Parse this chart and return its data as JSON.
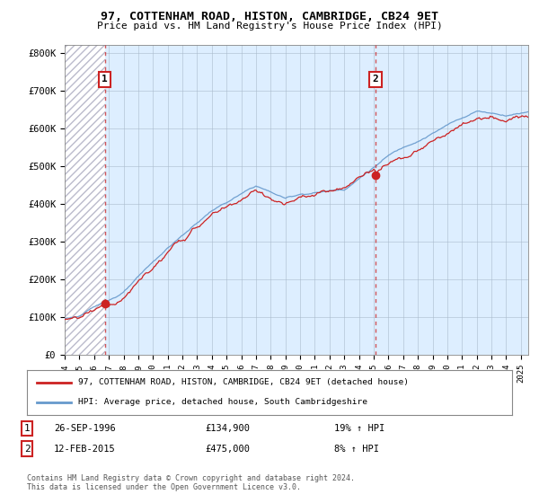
{
  "title": "97, COTTENHAM ROAD, HISTON, CAMBRIDGE, CB24 9ET",
  "subtitle": "Price paid vs. HM Land Registry's House Price Index (HPI)",
  "ylim": [
    0,
    820000
  ],
  "yticks": [
    0,
    100000,
    200000,
    300000,
    400000,
    500000,
    600000,
    700000,
    800000
  ],
  "ytick_labels": [
    "£0",
    "£100K",
    "£200K",
    "£300K",
    "£400K",
    "£500K",
    "£600K",
    "£700K",
    "£800K"
  ],
  "xmin": 1994,
  "xmax": 2025.5,
  "sale1_date": 1996.73,
  "sale1_price": 134900,
  "sale2_date": 2015.12,
  "sale2_price": 475000,
  "legend_line1": "97, COTTENHAM ROAD, HISTON, CAMBRIDGE, CB24 9ET (detached house)",
  "legend_line2": "HPI: Average price, detached house, South Cambridgeshire",
  "footer": "Contains HM Land Registry data © Crown copyright and database right 2024.\nThis data is licensed under the Open Government Licence v3.0.",
  "red_color": "#cc2222",
  "blue_color": "#6699cc",
  "bg_plot_color": "#ddeeff",
  "hatch_color": "#bbbbcc",
  "bg_color": "#ffffff",
  "grid_color": "#aabbcc"
}
